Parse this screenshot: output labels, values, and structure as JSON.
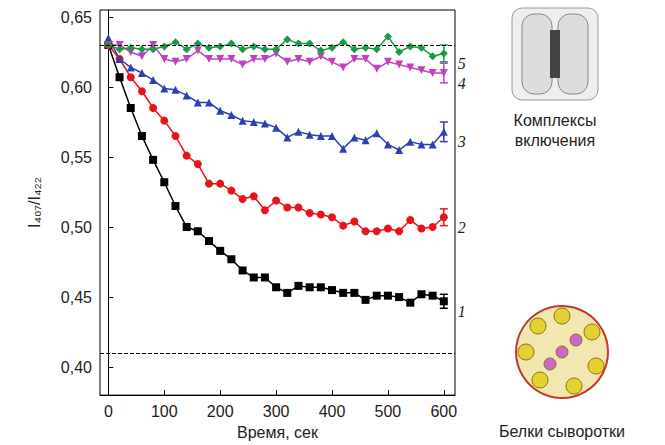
{
  "chart_data": {
    "type": "line",
    "x_label": "Время, сек",
    "y_label": "I₄₀₇/I₄₂₂",
    "xlim": [
      -15,
      620
    ],
    "xticks": [
      0,
      100,
      200,
      300,
      400,
      500,
      600
    ],
    "ylim": [
      0.38,
      0.655
    ],
    "yticks": [
      {
        "value": 0.4,
        "label": "0,40"
      },
      {
        "value": 0.45,
        "label": "0,45"
      },
      {
        "value": 0.5,
        "label": "0,50"
      },
      {
        "value": 0.55,
        "label": "0,55"
      },
      {
        "value": 0.6,
        "label": "0,60"
      },
      {
        "value": 0.65,
        "label": "0,65"
      }
    ],
    "grid": false,
    "reference_lines": [
      {
        "y": 0.63,
        "line_style": "dashed"
      },
      {
        "y": 0.411,
        "line_style": "dashed"
      }
    ],
    "annotations": [
      "Комплексы включения",
      "Белки сыворотки"
    ],
    "x": [
      0,
      20,
      40,
      60,
      80,
      100,
      120,
      140,
      160,
      180,
      200,
      220,
      240,
      260,
      280,
      300,
      320,
      340,
      360,
      380,
      400,
      420,
      440,
      460,
      480,
      500,
      520,
      540,
      560,
      580,
      600
    ],
    "series": [
      {
        "name": "1",
        "color": "#000000",
        "marker": "square",
        "values": [
          0.63,
          0.607,
          0.585,
          0.565,
          0.548,
          0.532,
          0.515,
          0.5,
          0.497,
          0.49,
          0.483,
          0.477,
          0.469,
          0.464,
          0.464,
          0.457,
          0.453,
          0.458,
          0.457,
          0.457,
          0.455,
          0.453,
          0.453,
          0.448,
          0.451,
          0.451,
          0.45,
          0.446,
          0.452,
          0.451,
          0.447
        ],
        "errors": [
          null,
          null,
          null,
          null,
          null,
          null,
          null,
          null,
          null,
          null,
          null,
          null,
          null,
          null,
          null,
          null,
          null,
          null,
          null,
          null,
          null,
          null,
          null,
          null,
          null,
          null,
          null,
          null,
          null,
          null,
          0.005
        ]
      },
      {
        "name": "2",
        "color": "#e8141b",
        "marker": "circle",
        "values": [
          0.63,
          0.62,
          0.607,
          0.597,
          0.585,
          0.576,
          0.565,
          0.551,
          0.545,
          0.531,
          0.531,
          0.526,
          0.52,
          0.522,
          0.512,
          0.519,
          0.514,
          0.514,
          0.51,
          0.509,
          0.507,
          0.501,
          0.504,
          0.497,
          0.497,
          0.499,
          0.497,
          0.505,
          0.499,
          0.5,
          0.507
        ],
        "errors": [
          null,
          null,
          null,
          null,
          null,
          null,
          null,
          null,
          null,
          null,
          null,
          null,
          null,
          null,
          null,
          null,
          null,
          null,
          null,
          null,
          null,
          null,
          null,
          null,
          null,
          null,
          null,
          null,
          null,
          null,
          0.006
        ]
      },
      {
        "name": "3",
        "color": "#2e3fb5",
        "marker": "triangle",
        "values": [
          0.635,
          0.62,
          0.614,
          0.61,
          0.605,
          0.599,
          0.598,
          0.594,
          0.589,
          0.589,
          0.583,
          0.58,
          0.576,
          0.575,
          0.574,
          0.571,
          0.564,
          0.568,
          0.566,
          0.565,
          0.565,
          0.556,
          0.564,
          0.562,
          0.567,
          0.559,
          0.555,
          0.561,
          0.559,
          0.559,
          0.568
        ],
        "errors": [
          null,
          null,
          null,
          null,
          null,
          null,
          null,
          null,
          null,
          null,
          null,
          null,
          null,
          null,
          null,
          null,
          null,
          null,
          null,
          null,
          null,
          null,
          null,
          null,
          null,
          null,
          null,
          null,
          null,
          null,
          0.007
        ]
      },
      {
        "name": "4",
        "color": "#c040c0",
        "marker": "triangle-down",
        "values": [
          0.63,
          0.63,
          0.625,
          0.622,
          0.63,
          0.62,
          0.618,
          0.62,
          0.626,
          0.62,
          0.62,
          0.62,
          0.616,
          0.62,
          0.62,
          0.624,
          0.618,
          0.62,
          0.618,
          0.622,
          0.618,
          0.614,
          0.62,
          0.62,
          0.613,
          0.618,
          0.616,
          0.614,
          0.612,
          0.61,
          0.61
        ],
        "errors": [
          null,
          null,
          null,
          null,
          null,
          null,
          null,
          null,
          null,
          null,
          null,
          null,
          null,
          null,
          null,
          null,
          null,
          null,
          null,
          null,
          null,
          null,
          null,
          null,
          null,
          null,
          null,
          null,
          null,
          null,
          0.007
        ]
      },
      {
        "name": "5",
        "color": "#1a9a45",
        "marker": "diamond",
        "values": [
          0.63,
          0.627,
          0.628,
          0.627,
          0.627,
          0.629,
          0.632,
          0.627,
          0.631,
          0.628,
          0.629,
          0.631,
          0.627,
          0.629,
          0.627,
          0.627,
          0.634,
          0.631,
          0.631,
          0.626,
          0.628,
          0.632,
          0.627,
          0.628,
          0.627,
          0.636,
          0.625,
          0.629,
          0.628,
          0.622,
          0.624
        ],
        "errors": [
          null,
          null,
          null,
          null,
          null,
          null,
          null,
          null,
          null,
          null,
          null,
          null,
          null,
          null,
          null,
          null,
          null,
          null,
          null,
          null,
          null,
          null,
          null,
          null,
          null,
          null,
          null,
          null,
          null,
          null,
          0.006
        ]
      }
    ]
  }
}
